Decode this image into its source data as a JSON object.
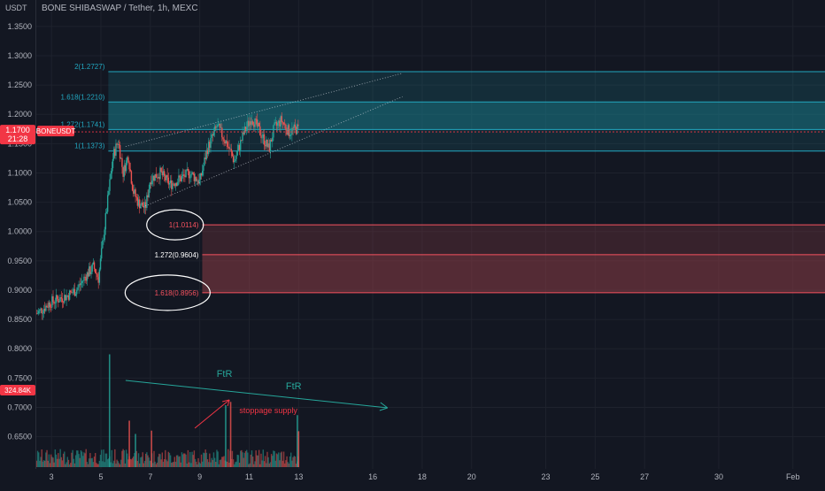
{
  "header": {
    "symbol_title": "BONE SHIBASWAP / Tether, 1h, MEXC",
    "currency": "USDT"
  },
  "price_badge": {
    "price": "1.1700",
    "countdown": "21:28",
    "symbol": "BONEUSDT",
    "color": "#f23645"
  },
  "volume_badge": {
    "value": "324.84K",
    "color": "#f23645"
  },
  "colors": {
    "background": "#131722",
    "up": "#26a69a",
    "down": "#ef5350",
    "fib_up_line": "#22a7c0",
    "fib_down_line": "#f7525f",
    "fib_up_zone": "#1a7f8e",
    "fib_down_zone": "#8a3c45",
    "annotation": "#26a69a",
    "annotation_red": "#f23645"
  },
  "chart_data": {
    "type": "candlestick",
    "y_ticks": [
      "1.3500",
      "1.3000",
      "1.2500",
      "1.2000",
      "1.1500",
      "1.1000",
      "1.0500",
      "1.0000",
      "0.9500",
      "0.9000",
      "0.8500",
      "0.8000",
      "0.7500",
      "0.7000",
      "0.6500"
    ],
    "y_tick_values": [
      1.35,
      1.3,
      1.25,
      1.2,
      1.15,
      1.1,
      1.05,
      1.0,
      0.95,
      0.9,
      0.85,
      0.8,
      0.75,
      0.7,
      0.65
    ],
    "ylim": [
      0.595,
      1.395
    ],
    "x_ticks": [
      "3",
      "5",
      "7",
      "9",
      "11",
      "13",
      "16",
      "18",
      "20",
      "23",
      "25",
      "27",
      "30",
      "Feb"
    ],
    "x_tick_days": [
      3,
      5,
      7,
      9,
      11,
      13,
      16,
      18,
      20,
      23,
      25,
      27,
      30,
      33
    ],
    "xlim_days": [
      2.35,
      34.3
    ],
    "price_path": [
      [
        2.4,
        0.86
      ],
      [
        3.0,
        0.88
      ],
      [
        3.6,
        0.89
      ],
      [
        4.0,
        0.9
      ],
      [
        4.4,
        0.925
      ],
      [
        4.7,
        0.94
      ],
      [
        4.9,
        0.92
      ],
      [
        5.1,
        0.99
      ],
      [
        5.35,
        1.08
      ],
      [
        5.5,
        1.13
      ],
      [
        5.7,
        1.155
      ],
      [
        5.9,
        1.1
      ],
      [
        6.1,
        1.13
      ],
      [
        6.3,
        1.07
      ],
      [
        6.5,
        1.05
      ],
      [
        6.8,
        1.04
      ],
      [
        7.0,
        1.09
      ],
      [
        7.4,
        1.1
      ],
      [
        7.8,
        1.08
      ],
      [
        8.2,
        1.09
      ],
      [
        8.6,
        1.1
      ],
      [
        9.0,
        1.085
      ],
      [
        9.3,
        1.14
      ],
      [
        9.7,
        1.18
      ],
      [
        10.1,
        1.15
      ],
      [
        10.4,
        1.12
      ],
      [
        10.8,
        1.17
      ],
      [
        11.1,
        1.195
      ],
      [
        11.5,
        1.165
      ],
      [
        11.8,
        1.14
      ],
      [
        12.0,
        1.175
      ],
      [
        12.3,
        1.19
      ],
      [
        12.6,
        1.17
      ],
      [
        12.9,
        1.175
      ]
    ],
    "last_price": 1.17,
    "volume": {
      "ylim_k": [
        0,
        1200
      ],
      "spikes": [
        [
          5.35,
          1020
        ],
        [
          6.15,
          420
        ],
        [
          6.4,
          300
        ],
        [
          7.05,
          330
        ],
        [
          10.05,
          560
        ],
        [
          10.25,
          590
        ],
        [
          12.95,
          470
        ],
        [
          13.0,
          325
        ]
      ]
    },
    "fib_up": [
      {
        "label": "2(1.2727)",
        "value": 1.2727
      },
      {
        "label": "1.618(1.2210)",
        "value": 1.221
      },
      {
        "label": "1.272(1.1741)",
        "value": 1.1741
      },
      {
        "label": "1(1.1373)",
        "value": 1.1373
      }
    ],
    "fib_down": [
      {
        "label": "1(1.0114)",
        "value": 1.0114
      },
      {
        "label": "1.272(0.9604)",
        "value": 0.9604
      },
      {
        "label": "1.618(0.8956)",
        "value": 0.8956
      }
    ],
    "annotations": {
      "ftr_1": "FtR",
      "ftr_2": "FtR",
      "stoppage": "stoppage supply"
    }
  }
}
